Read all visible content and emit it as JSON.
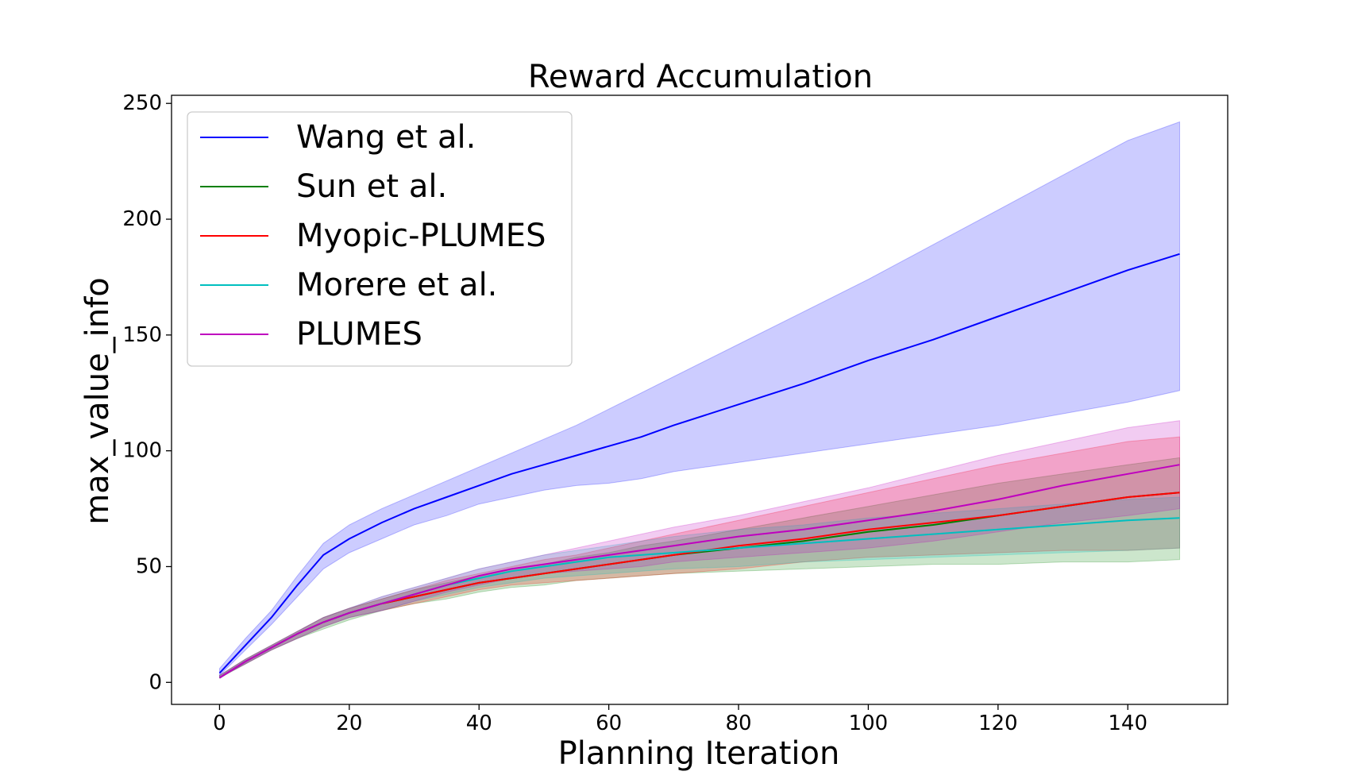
{
  "chart_data": {
    "type": "line",
    "title": "Reward Accumulation",
    "xlabel": "Planning Iteration",
    "ylabel": "max_value_info",
    "xlim": [
      -7.4,
      155.4
    ],
    "ylim": [
      -9.5,
      253.5
    ],
    "xticks": [
      0,
      20,
      40,
      60,
      80,
      100,
      120,
      140
    ],
    "yticks": [
      0,
      50,
      100,
      150,
      200,
      250
    ],
    "grid": false,
    "legend_position": "top-left",
    "x": [
      0,
      4,
      8,
      12,
      16,
      20,
      25,
      30,
      35,
      40,
      45,
      50,
      55,
      60,
      65,
      70,
      80,
      90,
      100,
      110,
      120,
      130,
      140,
      148
    ],
    "series": [
      {
        "name": "Wang et al.",
        "color": "#0000ff",
        "fill": "#0000ff",
        "mean": [
          4,
          16,
          28,
          42,
          55,
          62,
          69,
          75,
          80,
          85,
          90,
          94,
          98,
          102,
          106,
          111,
          120,
          129,
          139,
          148,
          158,
          168,
          178,
          185
        ],
        "lower": [
          3,
          14,
          25,
          37,
          49,
          56,
          62,
          68,
          72,
          77,
          80,
          83,
          85,
          86,
          88,
          91,
          95,
          99,
          103,
          107,
          111,
          116,
          121,
          126
        ],
        "upper": [
          6,
          19,
          31,
          46,
          60,
          68,
          75,
          81,
          87,
          93,
          99,
          105,
          111,
          118,
          125,
          132,
          146,
          160,
          174,
          189,
          204,
          219,
          234,
          242
        ]
      },
      {
        "name": "Sun et al.",
        "color": "#007f00",
        "fill": "#008000",
        "mean": [
          2,
          9,
          15,
          21,
          26,
          30,
          34,
          37,
          40,
          43,
          45,
          47,
          49,
          51,
          53,
          55,
          58,
          61,
          65,
          68,
          72,
          76,
          80,
          82
        ],
        "lower": [
          2,
          8,
          14,
          19,
          23,
          27,
          31,
          34,
          36,
          39,
          41,
          42,
          44,
          45,
          46,
          47,
          48,
          49,
          50,
          51,
          51,
          52,
          52,
          53
        ],
        "upper": [
          3,
          10,
          16,
          22,
          28,
          32,
          36,
          40,
          43,
          46,
          49,
          51,
          54,
          56,
          59,
          61,
          66,
          71,
          76,
          81,
          86,
          90,
          94,
          97
        ]
      },
      {
        "name": "Myopic-PLUMES",
        "color": "#ff0000",
        "fill": "#ff0000",
        "mean": [
          2,
          9,
          15,
          21,
          26,
          30,
          34,
          37,
          40,
          43,
          45,
          47,
          49,
          51,
          53,
          55,
          59,
          62,
          66,
          69,
          72,
          76,
          80,
          82
        ],
        "lower": [
          2,
          8,
          14,
          19,
          24,
          28,
          31,
          34,
          37,
          40,
          42,
          43,
          44,
          45,
          46,
          47,
          49,
          52,
          54,
          55,
          56,
          57,
          57,
          58
        ],
        "upper": [
          3,
          10,
          16,
          22,
          28,
          32,
          36,
          40,
          44,
          47,
          50,
          53,
          55,
          58,
          61,
          64,
          70,
          76,
          82,
          88,
          94,
          99,
          104,
          106
        ]
      },
      {
        "name": "Morere et al.",
        "color": "#00bfbf",
        "fill": "#00bfbf",
        "mean": [
          2,
          9,
          15,
          21,
          26,
          30,
          34,
          38,
          42,
          45,
          48,
          50,
          52,
          54,
          55,
          56,
          58,
          60,
          62,
          64,
          66,
          68,
          70,
          71
        ],
        "lower": [
          2,
          8,
          14,
          19,
          24,
          28,
          31,
          35,
          38,
          41,
          43,
          45,
          46,
          47,
          48,
          49,
          50,
          52,
          53,
          54,
          55,
          56,
          57,
          58
        ],
        "upper": [
          3,
          10,
          16,
          22,
          28,
          32,
          37,
          41,
          45,
          49,
          52,
          55,
          57,
          59,
          61,
          63,
          66,
          68,
          71,
          73,
          75,
          77,
          79,
          80
        ]
      },
      {
        "name": "PLUMES",
        "color": "#bf00bf",
        "fill": "#bf00bf",
        "mean": [
          2,
          9,
          15,
          21,
          26,
          30,
          34,
          38,
          42,
          46,
          49,
          51,
          53,
          55,
          57,
          59,
          63,
          66,
          70,
          74,
          79,
          85,
          90,
          94
        ],
        "lower": [
          2,
          8,
          14,
          19,
          24,
          28,
          31,
          35,
          39,
          42,
          45,
          47,
          48,
          49,
          50,
          52,
          54,
          56,
          58,
          61,
          65,
          69,
          72,
          75
        ],
        "upper": [
          3,
          10,
          16,
          22,
          28,
          32,
          37,
          41,
          45,
          49,
          52,
          55,
          58,
          61,
          64,
          67,
          72,
          78,
          84,
          91,
          98,
          104,
          110,
          113
        ]
      }
    ]
  }
}
